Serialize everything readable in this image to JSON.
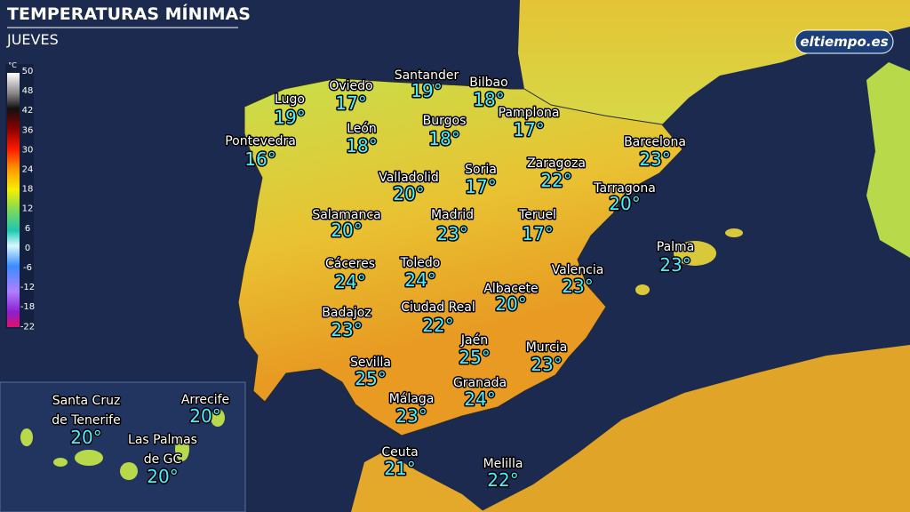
{
  "header": {
    "title": "TEMPERATURAS MÍNIMAS",
    "subtitle": "JUEVES",
    "logo": "eltiempo.es"
  },
  "legend": {
    "unit": "°C",
    "ticks": [
      "50",
      "48",
      "42",
      "36",
      "30",
      "24",
      "18",
      "12",
      "6",
      "0",
      "-6",
      "-12",
      "-18",
      "-22"
    ]
  },
  "cities": [
    {
      "name": "Lugo",
      "temp": "19°"
    },
    {
      "name": "Oviedo",
      "temp": "17°"
    },
    {
      "name": "Santander",
      "temp": "19°"
    },
    {
      "name": "Bilbao",
      "temp": "18°"
    },
    {
      "name": "Pamplona",
      "temp": "17°"
    },
    {
      "name": "León",
      "temp": "18°"
    },
    {
      "name": "Burgos",
      "temp": "18°"
    },
    {
      "name": "Pontevedra",
      "temp": "16°"
    },
    {
      "name": "Barcelona",
      "temp": "23°"
    },
    {
      "name": "Zaragoza",
      "temp": "22°"
    },
    {
      "name": "Valladolid",
      "temp": "20°"
    },
    {
      "name": "Soria",
      "temp": "17°"
    },
    {
      "name": "Tarragona",
      "temp": "20°"
    },
    {
      "name": "Salamanca",
      "temp": "20°"
    },
    {
      "name": "Madrid",
      "temp": "23°"
    },
    {
      "name": "Teruel",
      "temp": "17°"
    },
    {
      "name": "Palma",
      "temp": "23°"
    },
    {
      "name": "Cáceres",
      "temp": "24°"
    },
    {
      "name": "Toledo",
      "temp": "24°"
    },
    {
      "name": "Valencia",
      "temp": "23°"
    },
    {
      "name": "Albacete",
      "temp": "20°"
    },
    {
      "name": "Badajoz",
      "temp": "23°"
    },
    {
      "name": "Ciudad Real",
      "temp": "22°"
    },
    {
      "name": "Jaén",
      "temp": "25°"
    },
    {
      "name": "Murcia",
      "temp": "23°"
    },
    {
      "name": "Sevilla",
      "temp": "25°"
    },
    {
      "name": "Granada",
      "temp": "24°"
    },
    {
      "name": "Málaga",
      "temp": "23°"
    },
    {
      "name": "Ceuta",
      "temp": "21°"
    },
    {
      "name": "Melilla",
      "temp": "22°"
    }
  ],
  "canarias": [
    {
      "name_lines": [
        "Santa Cruz",
        "de Tenerife"
      ],
      "temp": "20°"
    },
    {
      "name_lines": [
        "Arrecife"
      ],
      "temp": "20°"
    },
    {
      "name_lines": [
        "Las Palmas",
        "de GC"
      ],
      "temp": "20°"
    }
  ]
}
